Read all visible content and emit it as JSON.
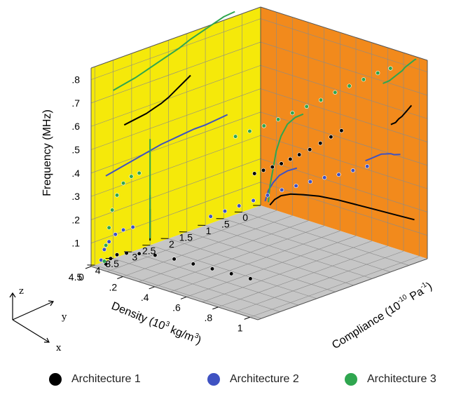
{
  "chart_data": {
    "type": "scatter",
    "title": "",
    "axes": {
      "z": {
        "label": "Frequency (MHz)",
        "ticks": [
          ".1",
          ".2",
          ".3",
          ".4",
          ".5",
          ".6",
          ".7",
          ".8"
        ],
        "range": [
          0,
          0.85
        ]
      },
      "x": {
        "label_main": "Density (10",
        "label_sup": "3",
        "label_mid": " kg/m",
        "label_sup2": "3",
        "label_end": ")",
        "ticks": [
          "0",
          ".5",
          "1",
          "1.5",
          "2",
          "2.5",
          "3",
          "3.5",
          "4",
          "4.5"
        ],
        "range": [
          0,
          4.6
        ]
      },
      "y": {
        "label_main": "Compliance (10",
        "label_sup": "-10",
        "label_mid": " Pa",
        "label_sup2": "-1",
        "label_end": ")",
        "ticks": [
          "0",
          ".2",
          ".4",
          ".6",
          ".8",
          "1"
        ],
        "range": [
          0,
          1.05
        ]
      }
    },
    "walls": {
      "density_wall_color": "#f5e90a",
      "compliance_wall_color": "#f28a1c",
      "floor_color": "#c6c6c6",
      "grid_color": "#8a8a8a"
    },
    "series": [
      {
        "name": "Architecture 1",
        "color": "#000000",
        "points": [
          {
            "x": 1.9,
            "y": 0.95,
            "z": 0.635
          },
          {
            "x": 2.1,
            "y": 0.93,
            "z": 0.615
          },
          {
            "x": 2.3,
            "y": 0.91,
            "z": 0.595
          },
          {
            "x": 2.5,
            "y": 0.89,
            "z": 0.575
          },
          {
            "x": 2.7,
            "y": 0.87,
            "z": 0.56
          },
          {
            "x": 2.9,
            "y": 0.86,
            "z": 0.55
          },
          {
            "x": 3.1,
            "y": 0.85,
            "z": 0.54
          },
          {
            "x": 3.3,
            "y": 0.84,
            "z": 0.535
          },
          {
            "x": 3.5,
            "y": 0.83,
            "z": 0.53
          },
          {
            "x": 3.7,
            "y": 0.82,
            "z": 0.525
          },
          {
            "x": 4.5,
            "y": 0.07,
            "z": 0.02
          },
          {
            "x": 4.5,
            "y": 0.1,
            "z": 0.05
          },
          {
            "x": 4.5,
            "y": 0.14,
            "z": 0.075
          },
          {
            "x": 4.5,
            "y": 0.2,
            "z": 0.095
          },
          {
            "x": 4.5,
            "y": 0.28,
            "z": 0.11
          },
          {
            "x": 4.5,
            "y": 0.38,
            "z": 0.125
          },
          {
            "x": 4.5,
            "y": 0.5,
            "z": 0.135
          },
          {
            "x": 4.5,
            "y": 0.62,
            "z": 0.14
          },
          {
            "x": 4.5,
            "y": 0.74,
            "z": 0.145
          },
          {
            "x": 4.5,
            "y": 0.86,
            "z": 0.15
          },
          {
            "x": 4.5,
            "y": 0.98,
            "z": 0.155
          }
        ]
      },
      {
        "name": "Architecture 2",
        "color": "#3f52c2",
        "points": [
          {
            "x": 0.9,
            "y": 0.88,
            "z": 0.41
          },
          {
            "x": 1.2,
            "y": 0.86,
            "z": 0.405
          },
          {
            "x": 1.5,
            "y": 0.84,
            "z": 0.4
          },
          {
            "x": 1.8,
            "y": 0.82,
            "z": 0.4
          },
          {
            "x": 2.1,
            "y": 0.8,
            "z": 0.395
          },
          {
            "x": 2.4,
            "y": 0.78,
            "z": 0.39
          },
          {
            "x": 2.7,
            "y": 0.76,
            "z": 0.385
          },
          {
            "x": 3.0,
            "y": 0.74,
            "z": 0.375
          },
          {
            "x": 3.3,
            "y": 0.72,
            "z": 0.365
          },
          {
            "x": 3.6,
            "y": 0.7,
            "z": 0.355
          },
          {
            "x": 3.9,
            "y": 0.68,
            "z": 0.345
          },
          {
            "x": 4.2,
            "y": 0.66,
            "z": 0.335
          },
          {
            "x": 4.5,
            "y": 0.04,
            "z": 0.03
          },
          {
            "x": 4.5,
            "y": 0.06,
            "z": 0.08
          },
          {
            "x": 4.5,
            "y": 0.09,
            "z": 0.12
          },
          {
            "x": 4.5,
            "y": 0.13,
            "z": 0.16
          },
          {
            "x": 4.5,
            "y": 0.18,
            "z": 0.19
          },
          {
            "x": 4.5,
            "y": 0.24,
            "z": 0.215
          }
        ]
      },
      {
        "name": "Architecture 3",
        "color": "#2fa64f",
        "points": [
          {
            "x": 0.7,
            "y": 0.98,
            "z": 0.84
          },
          {
            "x": 1.0,
            "y": 0.97,
            "z": 0.835
          },
          {
            "x": 1.3,
            "y": 0.95,
            "z": 0.82
          },
          {
            "x": 1.6,
            "y": 0.93,
            "z": 0.805
          },
          {
            "x": 1.9,
            "y": 0.91,
            "z": 0.79
          },
          {
            "x": 2.2,
            "y": 0.89,
            "z": 0.77
          },
          {
            "x": 2.5,
            "y": 0.87,
            "z": 0.755
          },
          {
            "x": 2.8,
            "y": 0.85,
            "z": 0.74
          },
          {
            "x": 3.1,
            "y": 0.83,
            "z": 0.725
          },
          {
            "x": 3.4,
            "y": 0.81,
            "z": 0.71
          },
          {
            "x": 3.7,
            "y": 0.79,
            "z": 0.7
          },
          {
            "x": 4.0,
            "y": 0.77,
            "z": 0.69
          },
          {
            "x": 4.5,
            "y": 0.06,
            "z": 0.03
          },
          {
            "x": 4.5,
            "y": 0.07,
            "z": 0.1
          },
          {
            "x": 4.5,
            "y": 0.09,
            "z": 0.18
          },
          {
            "x": 4.5,
            "y": 0.11,
            "z": 0.26
          },
          {
            "x": 4.5,
            "y": 0.14,
            "z": 0.33
          },
          {
            "x": 4.5,
            "y": 0.18,
            "z": 0.39
          },
          {
            "x": 4.5,
            "y": 0.23,
            "z": 0.43
          },
          {
            "x": 4.5,
            "y": 0.28,
            "z": 0.455
          }
        ]
      }
    ],
    "legend_position": "bottom",
    "grid": true
  },
  "triad": {
    "z": "z",
    "y": "y",
    "x": "x"
  }
}
